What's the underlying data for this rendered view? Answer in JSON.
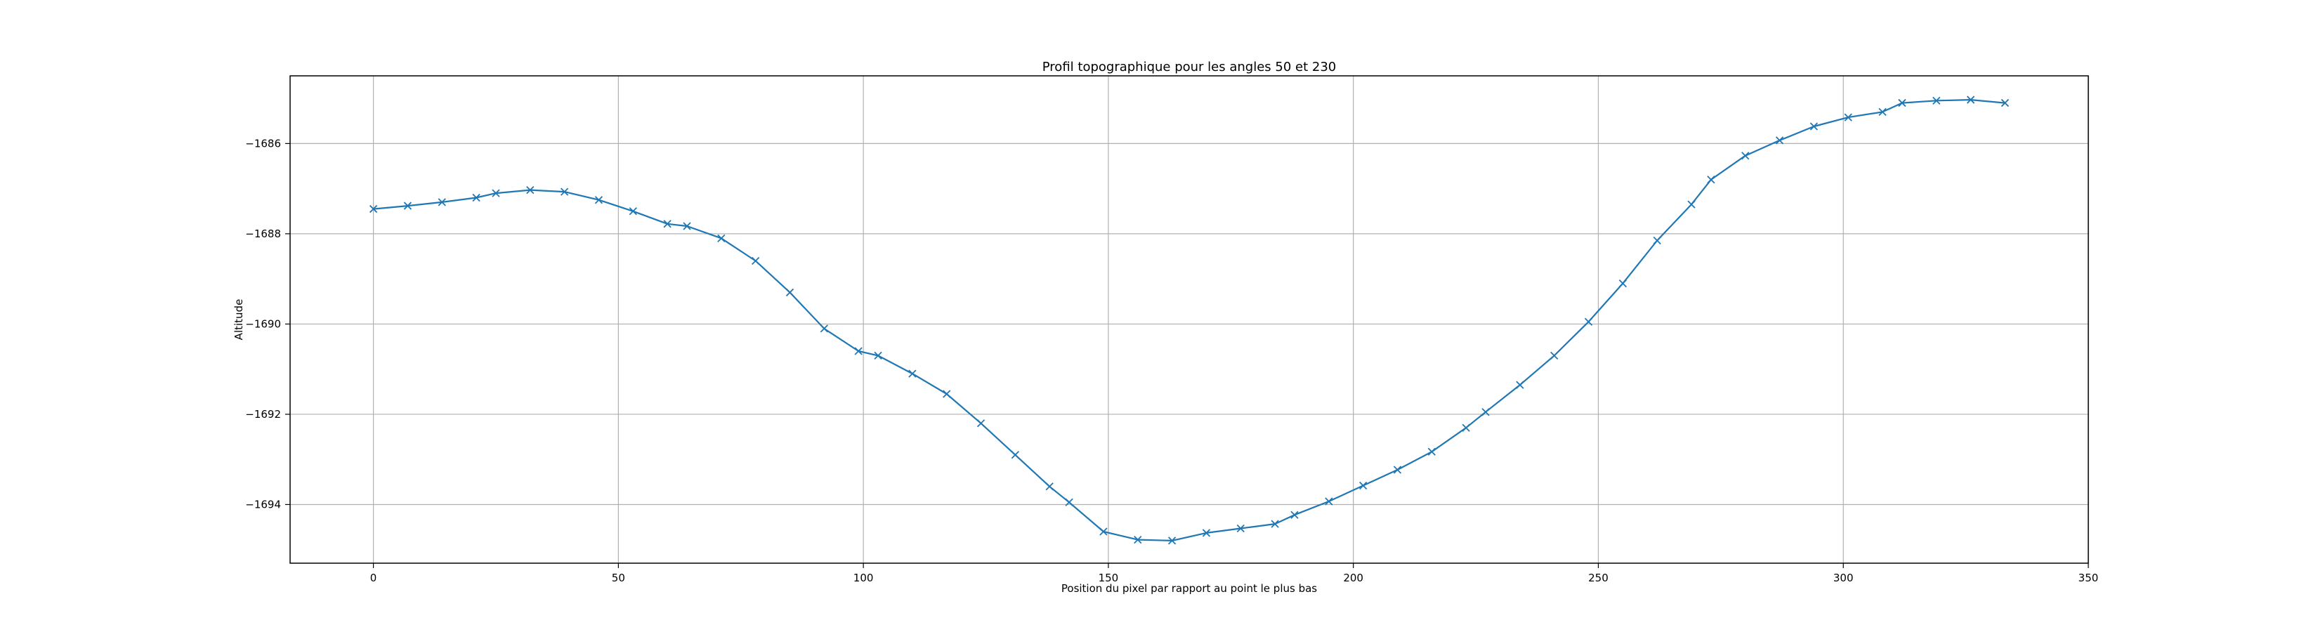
{
  "chart_data": {
    "type": "line",
    "title": "Profil topographique pour les angles 50 et 230",
    "xlabel": "Position du pixel par rapport au point le plus bas",
    "ylabel": "Altitude",
    "xlim": [
      -17,
      350
    ],
    "ylim": [
      -1695.3,
      -1684.5
    ],
    "xticks": [
      0,
      50,
      100,
      150,
      200,
      250,
      300,
      350
    ],
    "xtick_labels": [
      "0",
      "50",
      "100",
      "150",
      "200",
      "250",
      "300",
      "350"
    ],
    "yticks": [
      -1686,
      -1688,
      -1690,
      -1692,
      -1694
    ],
    "ytick_labels": [
      "−1686",
      "−1688",
      "−1690",
      "−1692",
      "−1694"
    ],
    "grid": true,
    "line_color": "#1f77b4",
    "marker": "x",
    "series": [
      {
        "x": [
          0,
          7,
          14,
          21,
          25,
          32,
          39,
          46,
          53,
          60,
          64,
          71,
          78,
          85,
          92,
          99,
          103,
          110,
          117,
          124,
          131,
          138,
          142,
          149,
          156,
          163,
          170,
          177,
          184,
          188,
          195,
          202,
          209,
          216,
          223,
          227,
          234,
          241,
          248,
          255,
          262,
          269,
          273,
          280,
          287,
          294,
          301,
          308,
          312,
          319,
          326,
          333
        ],
        "y": [
          -1687.45,
          -1687.38,
          -1687.3,
          -1687.2,
          -1687.1,
          -1687.03,
          -1687.07,
          -1687.25,
          -1687.5,
          -1687.78,
          -1687.83,
          -1688.1,
          -1688.6,
          -1689.3,
          -1690.1,
          -1690.6,
          -1690.7,
          -1691.1,
          -1691.55,
          -1692.2,
          -1692.9,
          -1693.6,
          -1693.95,
          -1694.6,
          -1694.78,
          -1694.8,
          -1694.63,
          -1694.53,
          -1694.43,
          -1694.23,
          -1693.93,
          -1693.58,
          -1693.23,
          -1692.83,
          -1692.3,
          -1691.95,
          -1691.35,
          -1690.7,
          -1689.95,
          -1689.1,
          -1688.15,
          -1687.35,
          -1686.8,
          -1686.27,
          -1685.93,
          -1685.62,
          -1685.42,
          -1685.3,
          -1685.1,
          -1685.05,
          -1685.03,
          -1685.1
        ]
      }
    ]
  }
}
